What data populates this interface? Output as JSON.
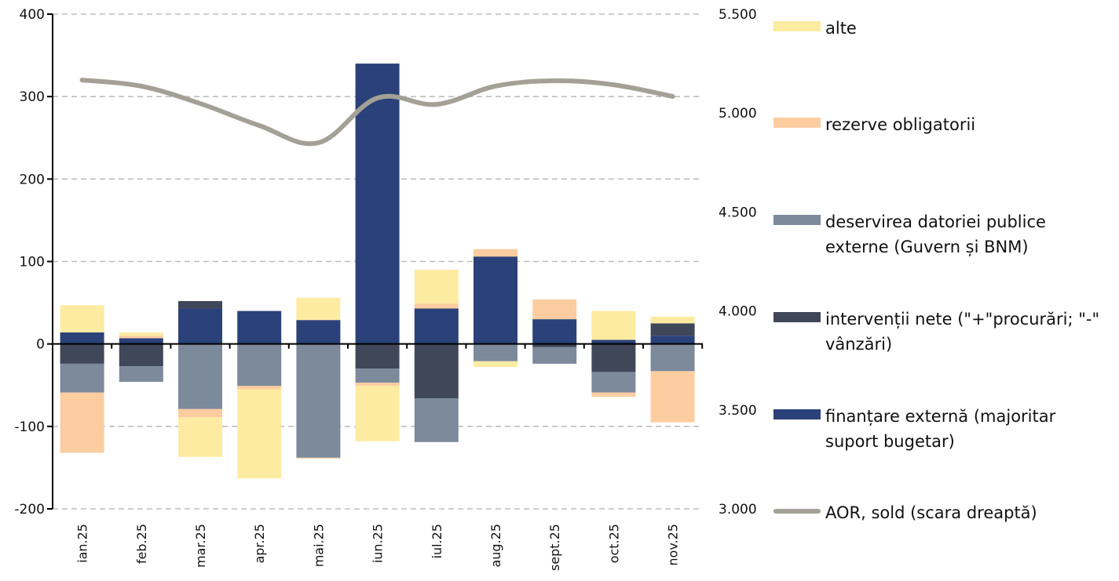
{
  "chart_data": {
    "type": "bar",
    "stacked": true,
    "title": "",
    "xlabel": "",
    "ylabel": "",
    "categories": [
      "ian.25",
      "feb.25",
      "mar.25",
      "apr.25",
      "mai.25",
      "iun.25",
      "iul.25",
      "aug.25",
      "sept.25",
      "oct.25",
      "nov.25"
    ],
    "ylim": [
      -200,
      400
    ],
    "yticks": [
      -200,
      -100,
      0,
      100,
      200,
      300,
      400
    ],
    "ytick_labels": [
      "-200",
      "-100",
      "0",
      "100",
      "200",
      "300",
      "400"
    ],
    "y2lim": [
      3000,
      5500
    ],
    "y2ticks": [
      3000,
      3500,
      4000,
      4500,
      5000,
      5500
    ],
    "y2tick_labels": [
      "3.000",
      "3.500",
      "4.000",
      "4.500",
      "5.000",
      "5.500"
    ],
    "grid": true,
    "legend_position": "right",
    "series": [
      {
        "name": "finanțare externă (majoritar suport bugetar)",
        "key": "fin",
        "color": "#2B4179",
        "values": [
          14,
          7,
          43,
          40,
          29,
          340,
          43,
          106,
          30,
          5,
          10
        ]
      },
      {
        "name": "intervenții nete (\"+\"procurări; \"-\" vânzări)",
        "key": "interv",
        "color": "#404759",
        "values": [
          -24,
          -27,
          9,
          0,
          0,
          -30,
          -66,
          0,
          -4,
          -34,
          15
        ]
      },
      {
        "name": "deservirea datoriei publice externe (Guvern și BNM)",
        "key": "debt",
        "color": "#7D8A9C",
        "values": [
          -35,
          -19,
          -79,
          -51,
          -138,
          -17,
          -53,
          -21,
          -20,
          -25,
          -33
        ]
      },
      {
        "name": "rezerve obligatorii",
        "key": "rez",
        "color": "#FCCDA0",
        "values": [
          -73,
          3,
          -10,
          -4,
          -1,
          -4,
          6,
          9,
          24,
          -5,
          -62
        ]
      },
      {
        "name": "alte",
        "key": "alte",
        "color": "#FDEBA1",
        "values": [
          33,
          4,
          -48,
          -108,
          27,
          -67,
          41,
          -7,
          0,
          35,
          8
        ]
      }
    ],
    "line_series": {
      "name": "AOR, sold (scara dreaptă)",
      "axis": "right",
      "color": "#A3A195",
      "values": [
        5167,
        5136,
        5048,
        4937,
        4850,
        5076,
        5044,
        5136,
        5163,
        5143,
        5084
      ]
    }
  },
  "legend": {
    "items": [
      {
        "label": "alte",
        "color": "#FDEBA1",
        "kind": "bar"
      },
      {
        "label": "rezerve obligatorii",
        "color": "#FCCDA0",
        "kind": "bar"
      },
      {
        "label": "deservirea datoriei publice externe (Guvern și BNM)",
        "color": "#7D8A9C",
        "kind": "bar"
      },
      {
        "label": "intervenții nete (\"+\"procurări; \"-\" vânzări)",
        "color": "#404759",
        "kind": "bar"
      },
      {
        "label": "finanțare externă (majoritar suport bugetar)",
        "color": "#2B4179",
        "kind": "bar"
      },
      {
        "label": "AOR, sold (scara dreaptă)",
        "color": "#A3A195",
        "kind": "line"
      }
    ]
  }
}
